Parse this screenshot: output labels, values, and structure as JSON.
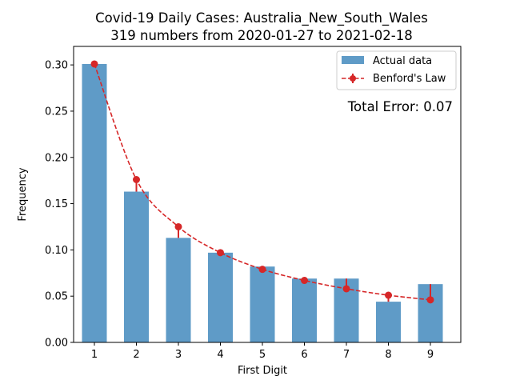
{
  "chart_data": {
    "type": "bar",
    "title_line1": "Covid-19 Daily Cases: Australia_New_South_Wales",
    "title_line2": "319 numbers from 2020-01-27 to 2021-02-18",
    "xlabel": "First Digit",
    "ylabel": "Frequency",
    "categories": [
      "1",
      "2",
      "3",
      "4",
      "5",
      "6",
      "7",
      "8",
      "9"
    ],
    "series": [
      {
        "name": "Actual data",
        "kind": "bar",
        "color": "#5f9bc7",
        "values": [
          0.301,
          0.163,
          0.113,
          0.097,
          0.082,
          0.069,
          0.069,
          0.044,
          0.063
        ]
      },
      {
        "name": "Benford's Law",
        "kind": "line-dashed-with-error-bars",
        "color": "#d62728",
        "values": [
          0.301,
          0.176,
          0.125,
          0.097,
          0.079,
          0.067,
          0.058,
          0.051,
          0.046
        ]
      }
    ],
    "annotation": "Total Error: 0.07",
    "annotation_color": "#d62728",
    "ylim": [
      0,
      0.32
    ],
    "yticks": [
      "0.00",
      "0.05",
      "0.10",
      "0.15",
      "0.20",
      "0.25",
      "0.30"
    ],
    "legend_position": "top-right",
    "grid": false
  }
}
